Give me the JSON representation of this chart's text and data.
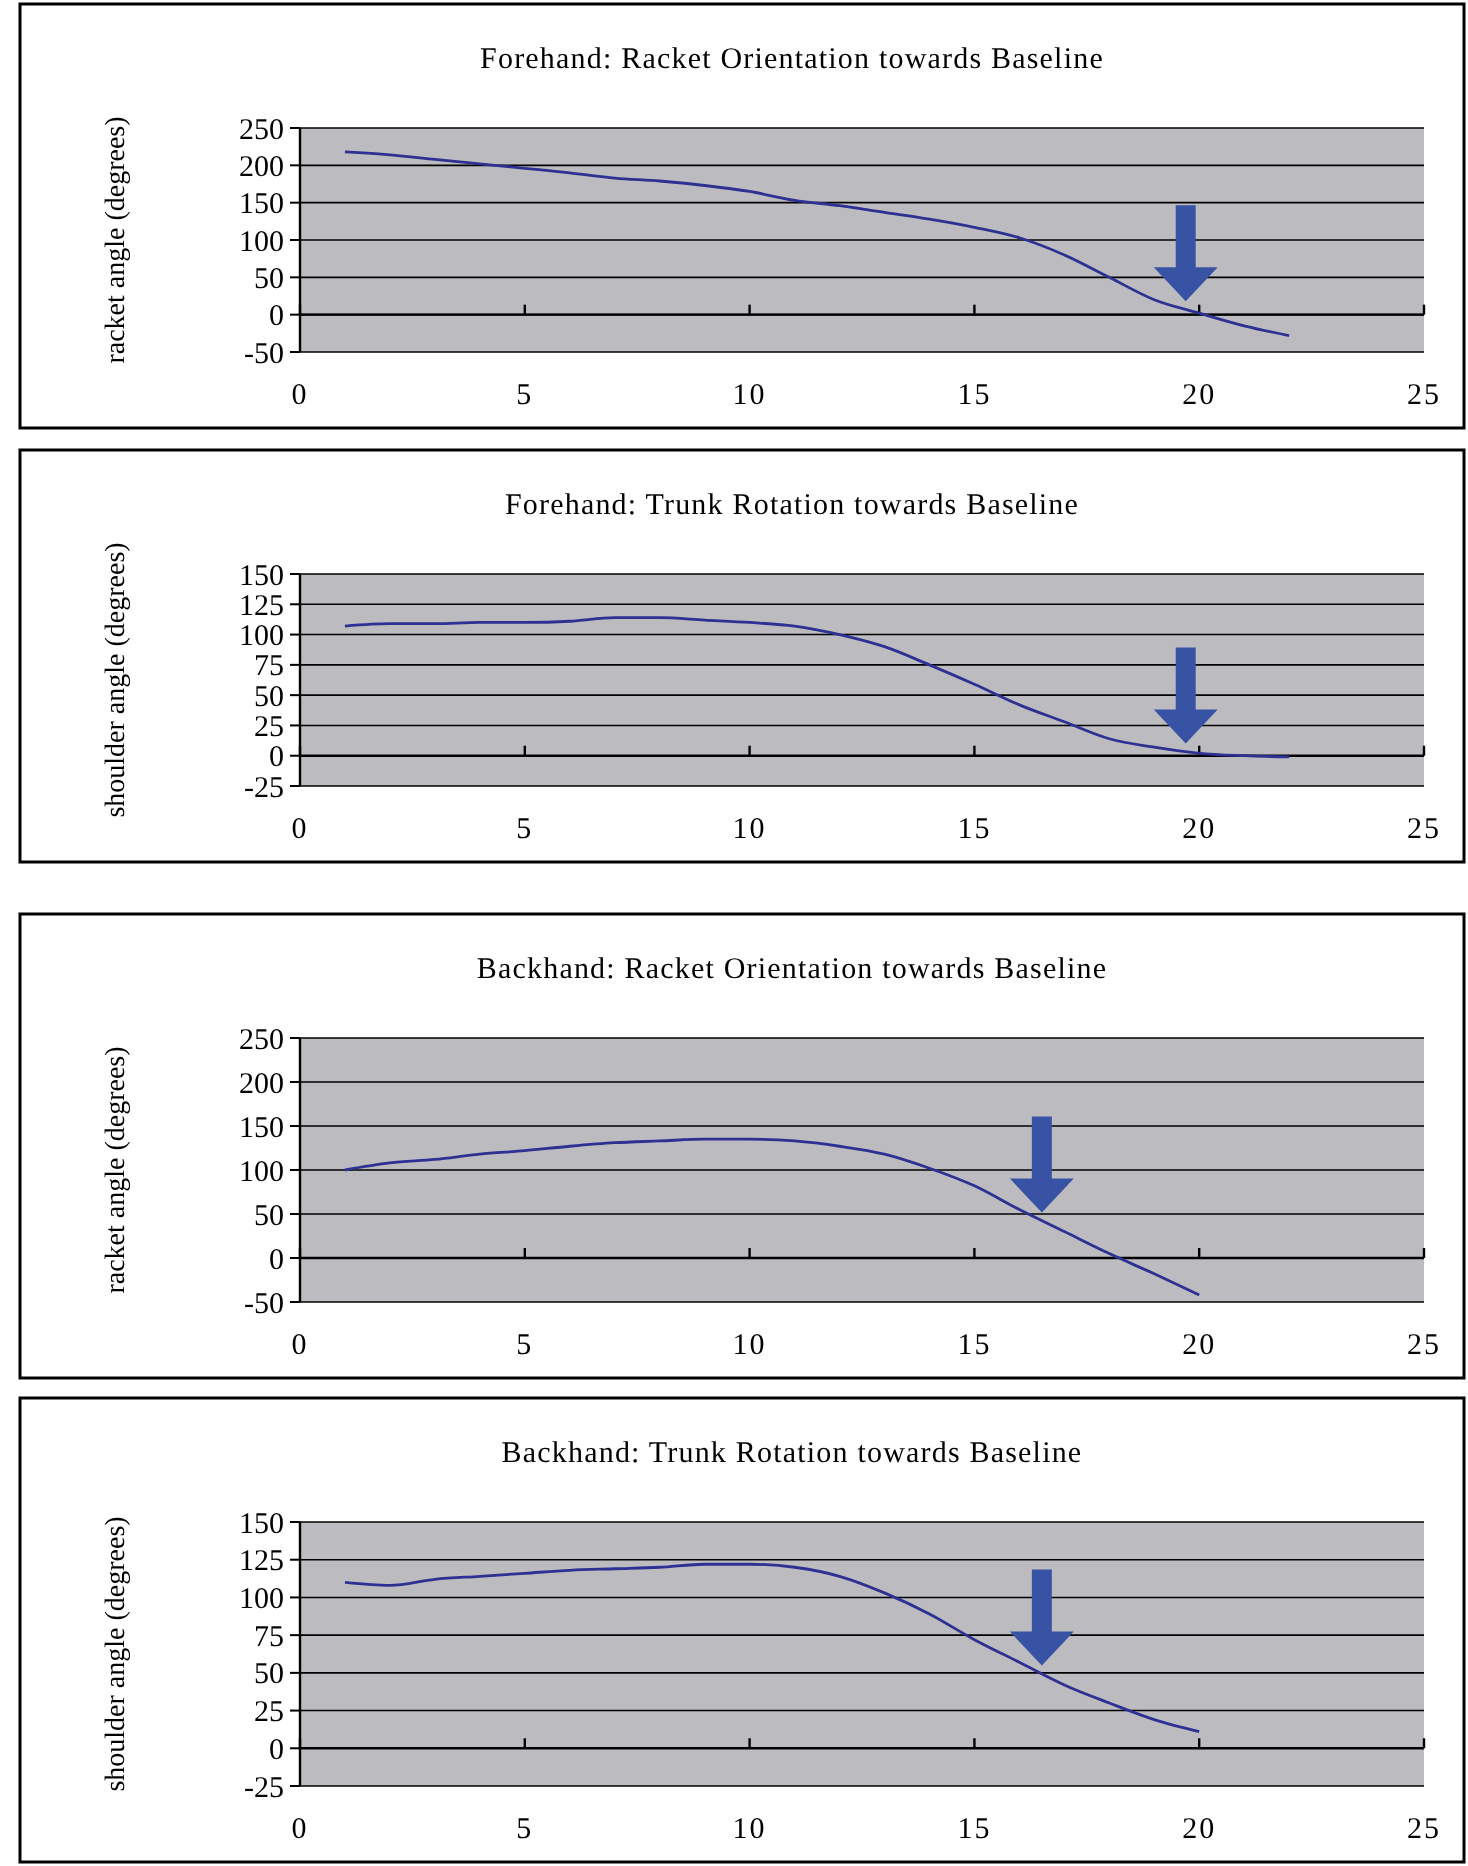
{
  "chart_data": [
    {
      "type": "line",
      "title": "Forehand: Racket Orientation towards Baseline",
      "ylabel": "racket angle (degrees)",
      "x": [
        1,
        2,
        3,
        4,
        5,
        6,
        7,
        8,
        9,
        10,
        11,
        12,
        13,
        14,
        15,
        16,
        17,
        18,
        19,
        20,
        21,
        22
      ],
      "series": [
        {
          "color": "#2e3192",
          "values": [
            218,
            214,
            208,
            202,
            196,
            190,
            183,
            179,
            173,
            165,
            153,
            146,
            137,
            128,
            117,
            103,
            80,
            50,
            20,
            2,
            -15,
            -28
          ]
        }
      ],
      "xlim": [
        0,
        25
      ],
      "xticks": [
        0,
        5,
        10,
        15,
        20,
        25
      ],
      "ylim": [
        -50,
        250
      ],
      "yticks": [
        -50,
        0,
        50,
        100,
        150,
        200,
        250
      ],
      "grid": "y",
      "marker": "none",
      "line_style": "solid"
    },
    {
      "type": "line",
      "title": "Forehand: Trunk Rotation towards Baseline",
      "ylabel": "shoulder angle (degrees)",
      "x": [
        1,
        2,
        3,
        4,
        5,
        6,
        7,
        8,
        9,
        10,
        11,
        12,
        13,
        14,
        15,
        16,
        17,
        18,
        19,
        20,
        21,
        22
      ],
      "series": [
        {
          "color": "#2e3192",
          "values": [
            107,
            109,
            109,
            110,
            110,
            111,
            114,
            114,
            112,
            110,
            107,
            100,
            90,
            75,
            59,
            42,
            28,
            14,
            7,
            2,
            0,
            -1
          ]
        }
      ],
      "xlim": [
        0,
        25
      ],
      "xticks": [
        0,
        5,
        10,
        15,
        20,
        25
      ],
      "ylim": [
        -25,
        150
      ],
      "yticks": [
        -25,
        0,
        25,
        50,
        75,
        100,
        125,
        150
      ],
      "grid": "y",
      "marker": "none",
      "line_style": "solid"
    },
    {
      "type": "line",
      "title": "Backhand: Racket Orientation towards Baseline",
      "ylabel": "racket angle (degrees)",
      "x": [
        1,
        2,
        3,
        4,
        5,
        6,
        7,
        8,
        9,
        10,
        11,
        12,
        13,
        14,
        15,
        16,
        17,
        18,
        19,
        20
      ],
      "series": [
        {
          "color": "#2e3192",
          "values": [
            100,
            108,
            112,
            118,
            122,
            127,
            131,
            133,
            135,
            135,
            133,
            127,
            118,
            102,
            82,
            55,
            30,
            5,
            -18,
            -42
          ]
        }
      ],
      "xlim": [
        0,
        25
      ],
      "xticks": [
        0,
        5,
        10,
        15,
        20,
        25
      ],
      "ylim": [
        -50,
        250
      ],
      "yticks": [
        -50,
        0,
        50,
        100,
        150,
        200,
        250
      ],
      "grid": "y",
      "marker": "none",
      "line_style": "solid"
    },
    {
      "type": "line",
      "title": "Backhand: Trunk Rotation towards Baseline",
      "ylabel": "shoulder angle (degrees)",
      "x": [
        1,
        2,
        3,
        4,
        5,
        6,
        7,
        8,
        9,
        10,
        11,
        12,
        13,
        14,
        15,
        16,
        17,
        18,
        19,
        20
      ],
      "series": [
        {
          "color": "#2e3192",
          "values": [
            110,
            108,
            112,
            114,
            116,
            118,
            119,
            120,
            122,
            122,
            120,
            114,
            103,
            89,
            72,
            57,
            42,
            30,
            19,
            11
          ]
        }
      ],
      "xlim": [
        0,
        25
      ],
      "xticks": [
        0,
        5,
        10,
        15,
        20,
        25
      ],
      "ylim": [
        -25,
        150
      ],
      "yticks": [
        -25,
        0,
        25,
        50,
        75,
        100,
        125,
        150
      ],
      "grid": "y",
      "marker": "none",
      "line_style": "solid"
    }
  ]
}
